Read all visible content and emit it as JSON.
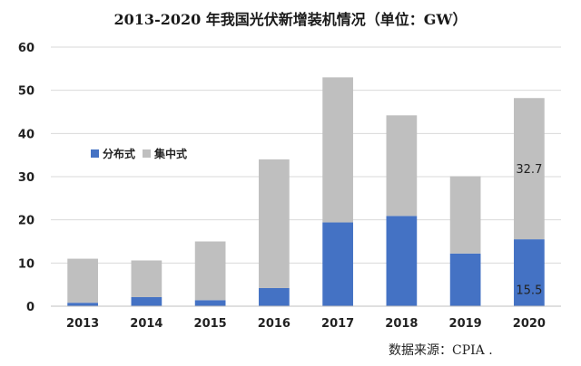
{
  "chart_data": {
    "type": "bar",
    "stacked": true,
    "title": "2013-2020 年我国光伏新增装机情况（单位：GW）",
    "source": "数据来源：CPIA .",
    "categories": [
      "2013",
      "2014",
      "2015",
      "2016",
      "2017",
      "2018",
      "2019",
      "2020"
    ],
    "series": [
      {
        "name": "分布式",
        "color": "#4472C4",
        "values": [
          0.8,
          2.1,
          1.4,
          4.2,
          19.4,
          20.9,
          12.2,
          15.5
        ]
      },
      {
        "name": "集中式",
        "color": "#BFBFBF",
        "values": [
          10.2,
          8.5,
          13.6,
          29.8,
          33.6,
          23.3,
          17.9,
          32.7
        ]
      }
    ],
    "yticks": [
      "0",
      "10",
      "20",
      "30",
      "40",
      "50",
      "60"
    ],
    "ylim": [
      0,
      60
    ],
    "data_labels": [
      {
        "category": "2020",
        "series": "集中式",
        "text": "32.7"
      },
      {
        "category": "2020",
        "series": "分布式",
        "text": "15.5"
      }
    ],
    "grid": true,
    "legend_position": "inside-left"
  }
}
